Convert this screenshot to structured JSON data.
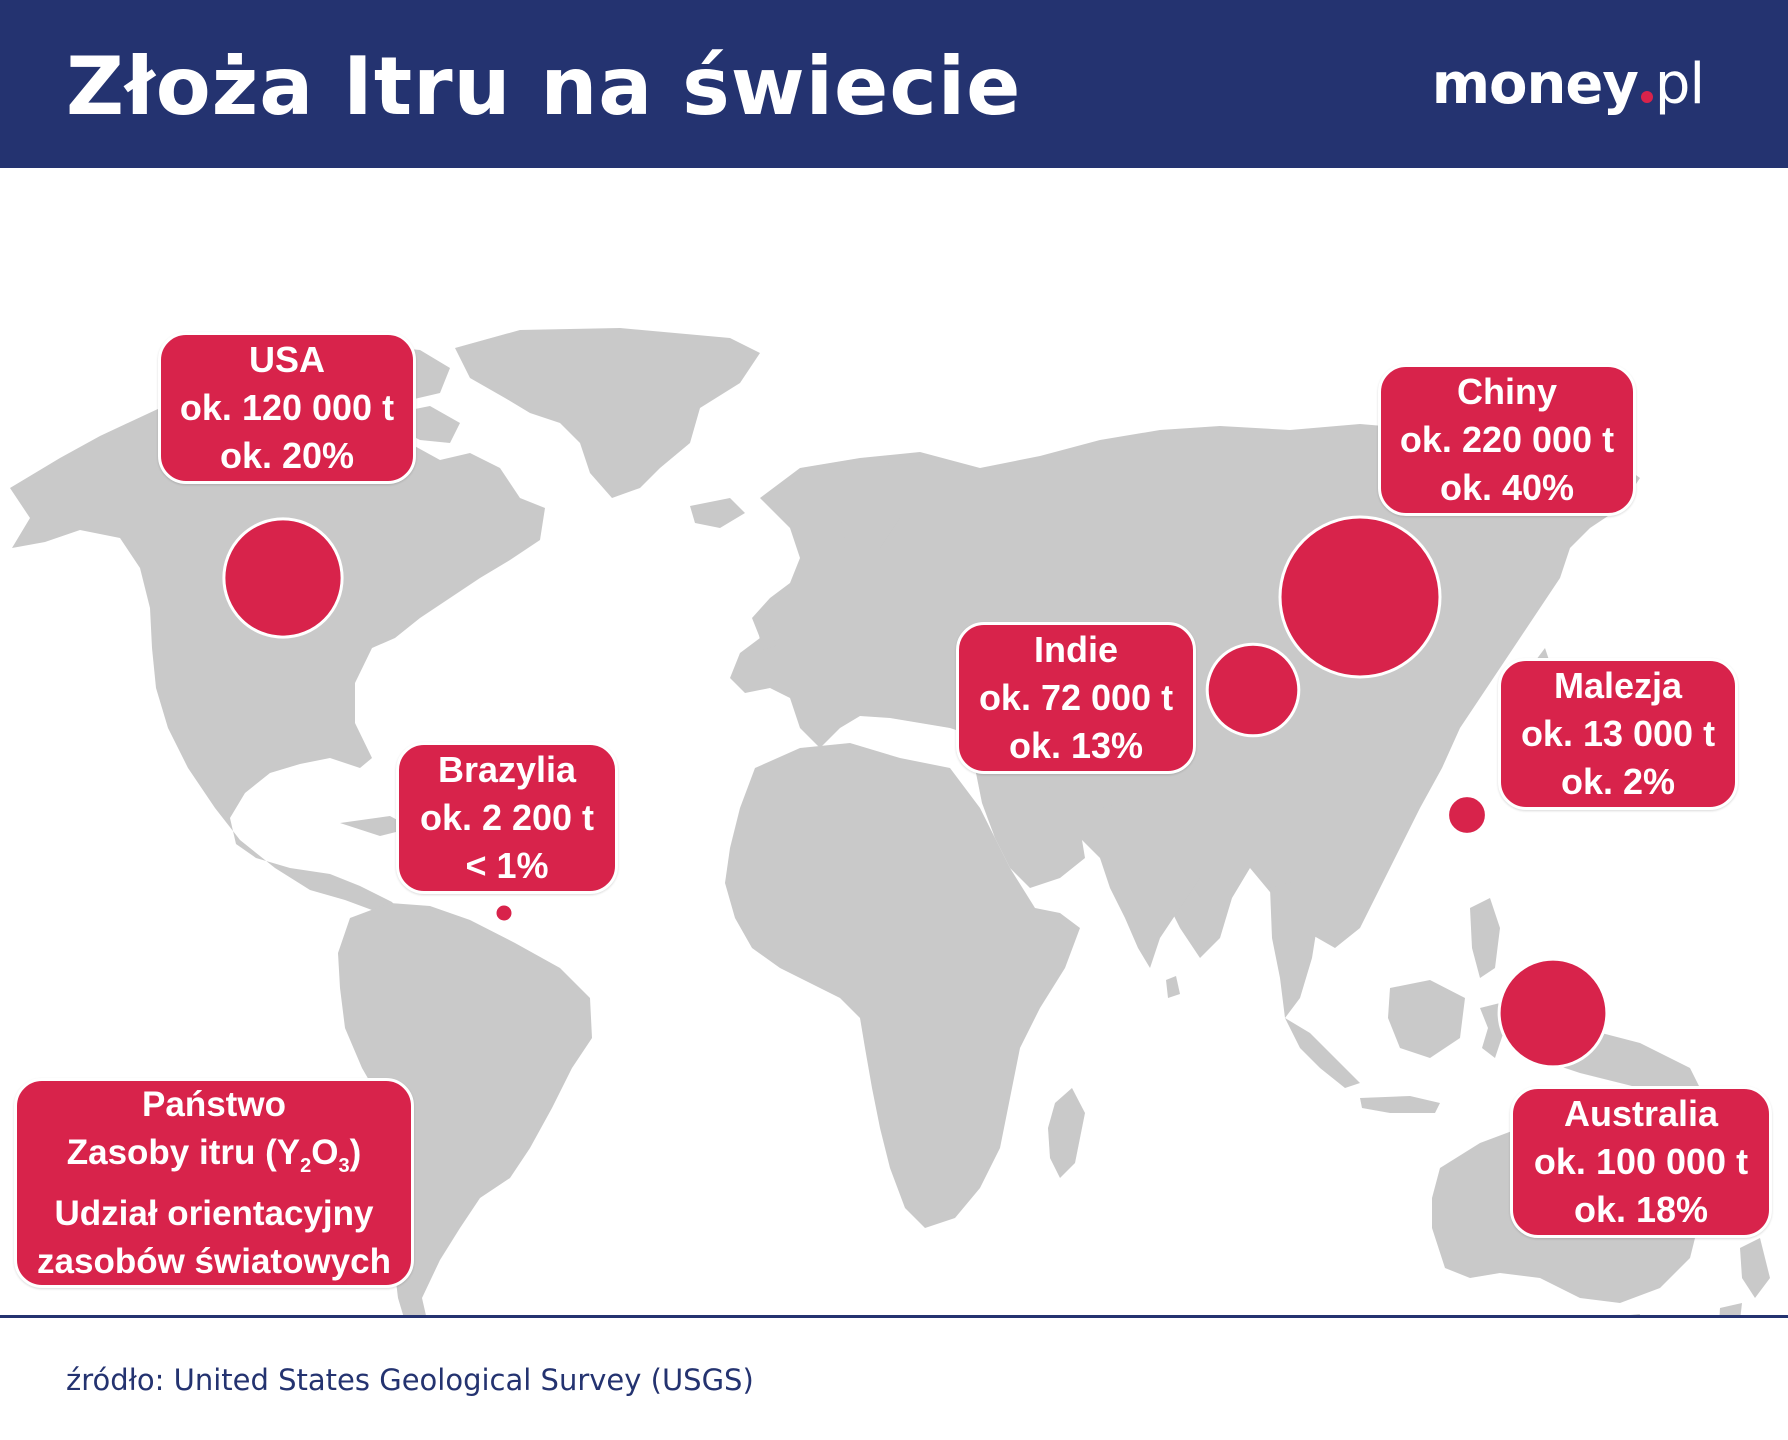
{
  "title": "Złoża Itru na świecie",
  "brand": {
    "name": "money",
    "suffix": "pl",
    "dot_color": "#d8234b"
  },
  "colors": {
    "header": "#243370",
    "marker": "#d8234b",
    "land": "#c9c9c9"
  },
  "legend": {
    "line1": "Państwo",
    "line2_prefix": "Zasoby itru (Y",
    "line2_sub1": "2",
    "line2_mid": "O",
    "line2_sub2": "3",
    "line2_suffix": ")",
    "line3": "Udział orientacyjny",
    "line4": "zasobów światowych"
  },
  "countries": [
    {
      "name": "USA",
      "amount": "ok. 120 000 t",
      "share": "ok. 20%",
      "reserves_t": 120000,
      "share_pct": 20
    },
    {
      "name": "Chiny",
      "amount": "ok. 220 000 t",
      "share": "ok. 40%",
      "reserves_t": 220000,
      "share_pct": 40
    },
    {
      "name": "Indie",
      "amount": "ok. 72 000 t",
      "share": "ok. 13%",
      "reserves_t": 72000,
      "share_pct": 13
    },
    {
      "name": "Malezja",
      "amount": "ok. 13 000 t",
      "share": "ok. 2%",
      "reserves_t": 13000,
      "share_pct": 2
    },
    {
      "name": "Brazylia",
      "amount": "ok. 2 200 t",
      "share": "< 1%",
      "reserves_t": 2200,
      "share_pct": 1
    },
    {
      "name": "Australia",
      "amount": "ok. 100 000 t",
      "share": "ok. 18%",
      "reserves_t": 100000,
      "share_pct": 18
    }
  ],
  "source": "źródło: United States Geological Survey (USGS)"
}
